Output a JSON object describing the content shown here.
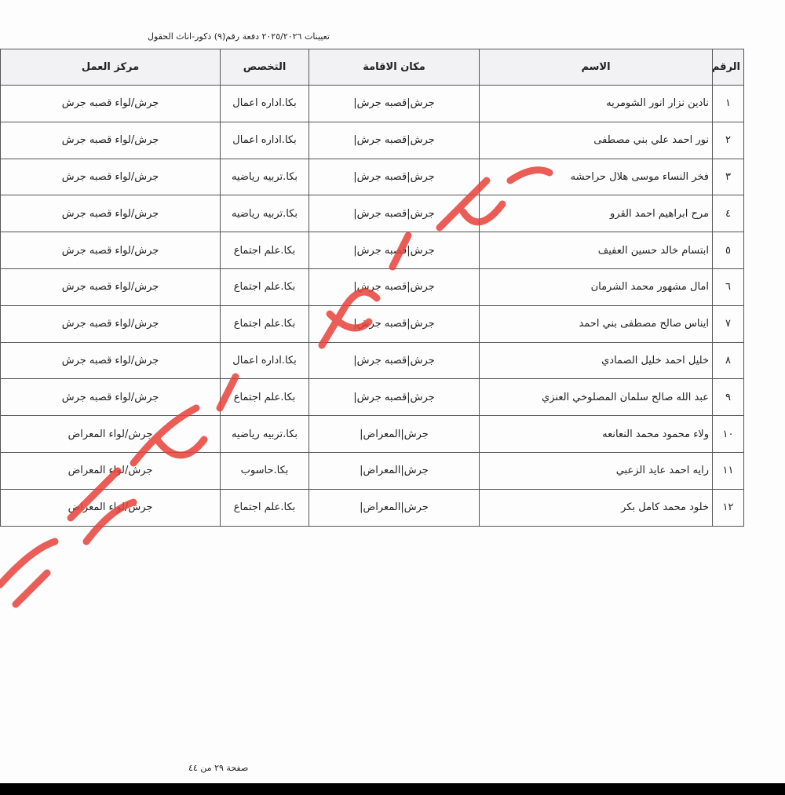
{
  "header": {
    "title": "تعيينات ٢٠٢٥/٢٠٢٦ دفعة رقم(٩) ذكور-اناث الحقول"
  },
  "table": {
    "headers": [
      "الرقم",
      "الاسم",
      "مكان الاقامة",
      "التخصص",
      "مركز العمل"
    ],
    "rows": [
      [
        "١",
        "نادين نزار انور الشومريه",
        "جرش|قصبه جرش|",
        "بكا.اداره اعمال",
        "جرش/لواء قصبه جرش"
      ],
      [
        "٢",
        "نور احمد علي بني مصطفى",
        "جرش|قصبه جرش|",
        "بكا.اداره اعمال",
        "جرش/لواء قصبه جرش"
      ],
      [
        "٣",
        "فخر النساء موسى هلال حراحشه",
        "جرش|قصبه جرش|",
        "بكا.تربيه رياضيه",
        "جرش/لواء قصبه جرش"
      ],
      [
        "٤",
        "مرح ابراهيم احمد القرو",
        "جرش|قصبه جرش|",
        "بكا.تربيه رياضيه",
        "جرش/لواء قصبه جرش"
      ],
      [
        "٥",
        "ابتسام خالد حسين العفيف",
        "جرش|قصبه جرش|",
        "بكا.علم اجتماع",
        "جرش/لواء قصبه جرش"
      ],
      [
        "٦",
        "امال مشهور محمد الشرمان",
        "جرش|قصبه جرش|",
        "بكا.علم اجتماع",
        "جرش/لواء قصبه جرش"
      ],
      [
        "٧",
        "ايناس صالح مصطفى بني احمد",
        "جرش|قصبه جرش|",
        "بكا.علم اجتماع",
        "جرش/لواء قصبه جرش"
      ],
      [
        "٨",
        "خليل احمد خليل الصمادي",
        "جرش|قصبه جرش|",
        "بكا.اداره اعمال",
        "جرش/لواء قصبه جرش"
      ],
      [
        "٩",
        "عبد الله صالح سلمان المصلوخي العنزي",
        "جرش|قصبه جرش|",
        "بكا.علم اجتماع",
        "جرش/لواء قصبه جرش"
      ],
      [
        "١٠",
        "ولاء محمود محمد النعانعه",
        "جرش|المعراض|",
        "بكا.تربيه رياضيه",
        "جرش/لواء المعراض"
      ],
      [
        "١١",
        "رايه احمد عايد الزعبي",
        "جرش|المعراض|",
        "بكا.حاسوب",
        "جرش/لواء المعراض"
      ],
      [
        "١٢",
        "خلود محمد كامل بكر",
        "جرش|المعراض|",
        "بكا.علم اجتماع",
        "جرش/لواء المعراض"
      ]
    ]
  },
  "footer": {
    "page": "صفحة ٢٩ من ٤٤"
  }
}
